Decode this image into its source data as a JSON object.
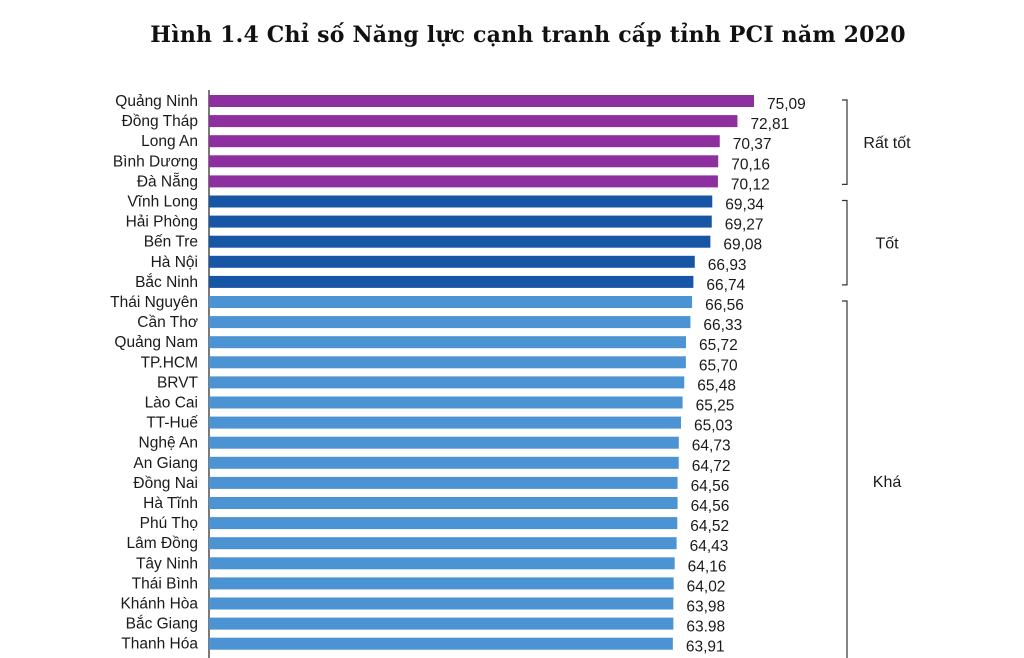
{
  "chart_data": {
    "type": "bar",
    "orientation": "horizontal",
    "title": "Hình 1.4 Chỉ số Năng lực cạnh tranh cấp tỉnh PCI năm 2020",
    "categories": [
      "Quảng Ninh",
      "Đồng Tháp",
      "Long An",
      "Bình Dương",
      "Đà Nẵng",
      "Vĩnh Long",
      "Hải Phòng",
      "Bến Tre",
      "Hà Nội",
      "Bắc Ninh",
      "Thái Nguyên",
      "Cần Thơ",
      "Quảng Nam",
      "TP.HCM",
      "BRVT",
      "Lào Cai",
      "TT-Huế",
      "Nghệ An",
      "An Giang",
      "Đồng Nai",
      "Hà Tĩnh",
      "Phú Thọ",
      "Lâm Đồng",
      "Tây Ninh",
      "Thái Bình",
      "Khánh Hòa",
      "Bắc Giang",
      "Thanh Hóa"
    ],
    "values": [
      75.09,
      72.81,
      70.37,
      70.16,
      70.12,
      69.34,
      69.27,
      69.08,
      66.93,
      66.74,
      66.56,
      66.33,
      65.72,
      65.7,
      65.48,
      65.25,
      65.03,
      64.73,
      64.72,
      64.56,
      64.56,
      64.52,
      64.43,
      64.16,
      64.02,
      63.98,
      63.98,
      63.91
    ],
    "value_labels": [
      "75,09",
      "72,81",
      "70,37",
      "70,16",
      "70,12",
      "69,34",
      "69,27",
      "69,08",
      "66,93",
      "66,74",
      "66,56",
      "66,33",
      "65,72",
      "65,70",
      "65,48",
      "65,25",
      "65,03",
      "64,73",
      "64,72",
      "64,56",
      "64,56",
      "64,52",
      "64,43",
      "64,16",
      "64,02",
      "63,98",
      "63.98",
      "63,91"
    ],
    "groups": [
      {
        "label": "Rất tốt",
        "start": 0,
        "end": 4,
        "color": "#8e2fa0"
      },
      {
        "label": "Tốt",
        "start": 5,
        "end": 9,
        "color": "#1756a5"
      },
      {
        "label": "Khá",
        "start": 10,
        "end": 27,
        "color": "#4b93d3"
      }
    ],
    "xlim": [
      0,
      75.09
    ],
    "grid": false,
    "legend": "none"
  }
}
